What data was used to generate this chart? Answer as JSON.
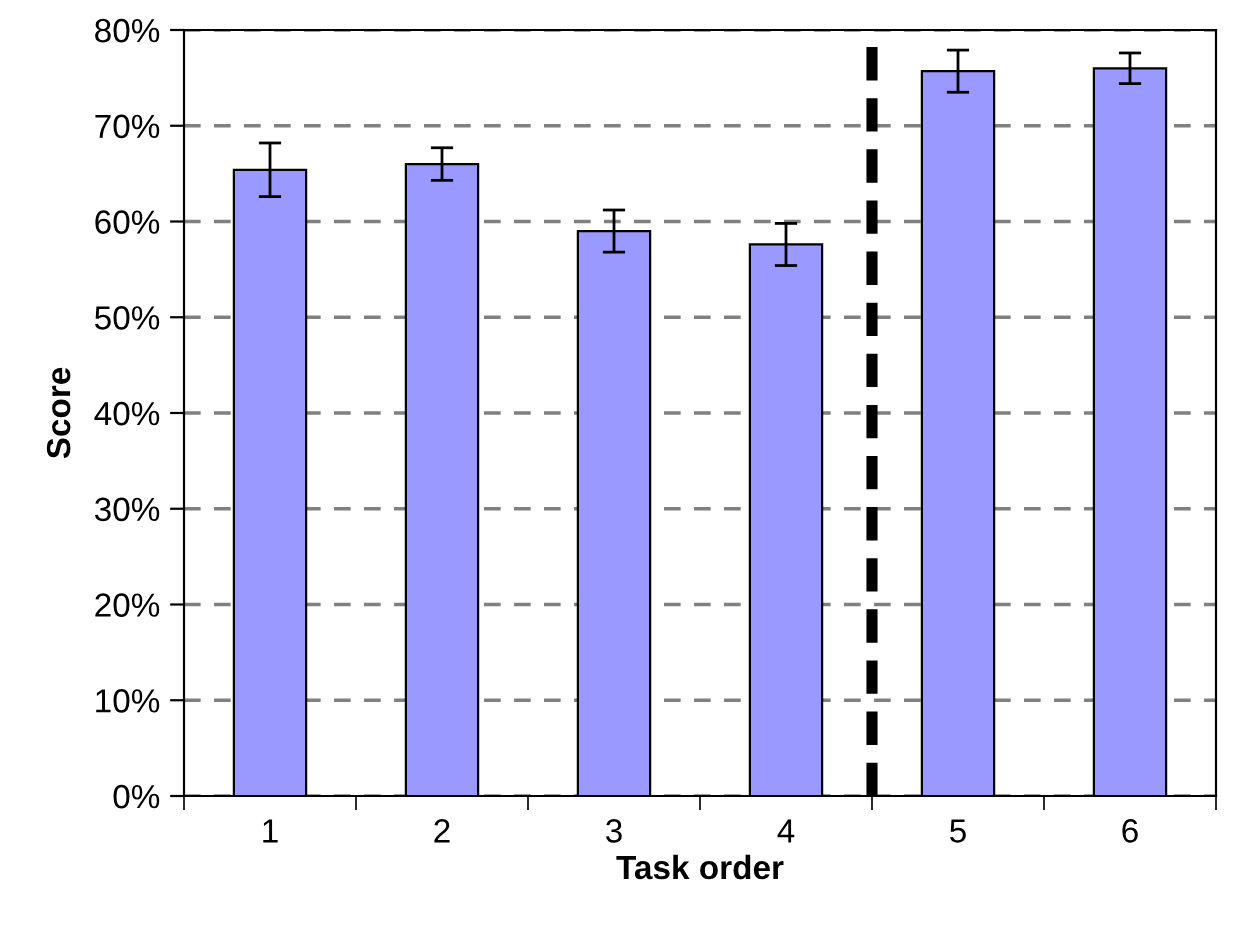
{
  "chart_data": {
    "type": "bar",
    "xlabel": "Task order",
    "ylabel": "Score",
    "x": [
      1,
      2,
      3,
      4,
      5,
      6
    ],
    "values": [
      65.4,
      66.0,
      59.0,
      57.6,
      75.7,
      76.0
    ],
    "errors": [
      2.8,
      1.7,
      2.2,
      2.2,
      2.2,
      1.6
    ],
    "color": "#9999ff",
    "xlim": [
      0.5,
      6.5
    ],
    "xticks": [
      {
        "value": 0.5,
        "label": null
      },
      1,
      {
        "value": 1.5,
        "label": null
      },
      2,
      {
        "value": 2.5,
        "label": null
      },
      3,
      {
        "value": 3.5,
        "label": null
      },
      4,
      {
        "value": 4.5,
        "label": null
      },
      5,
      {
        "value": 5.5,
        "label": null
      },
      6,
      {
        "value": 6.5,
        "label": null
      }
    ],
    "ylim": [
      0,
      80
    ],
    "yticks": [
      {
        "value": 0,
        "label": "0%"
      },
      {
        "value": 10,
        "label": "10%"
      },
      {
        "value": 20,
        "label": "20%"
      },
      {
        "value": 30,
        "label": "30%"
      },
      {
        "value": 40,
        "label": "40%"
      },
      {
        "value": 50,
        "label": "50%"
      },
      {
        "value": 60,
        "label": "60%"
      },
      {
        "value": 70,
        "label": "70%"
      },
      {
        "value": 80,
        "label": "80%"
      }
    ],
    "grid": "y",
    "ref_lines": [
      {
        "axis": "x",
        "value": 4.5,
        "color": "#000000",
        "line_style": "dashed"
      }
    ]
  }
}
